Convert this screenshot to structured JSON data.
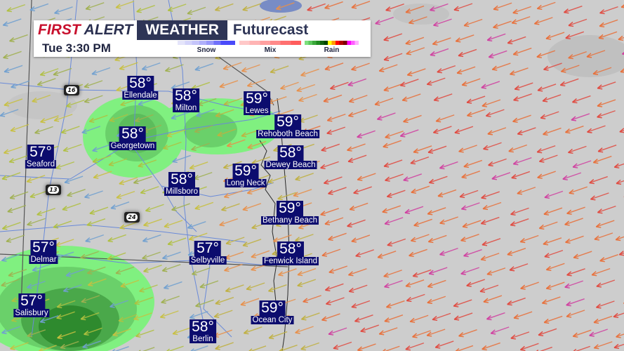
{
  "header": {
    "brand_first": "FIRST",
    "brand_alert": "ALERT",
    "brand_weather": "WEATHER",
    "product": "Futurecast",
    "time": "Tue 3:30 PM"
  },
  "legend": [
    {
      "label": "Snow",
      "colors": [
        "#e4e4fa",
        "#d4d4fa",
        "#c4c4fa",
        "#b0b0fa",
        "#9898fa",
        "#7070fa",
        "#4a4afa",
        "#4a4afa"
      ]
    },
    {
      "label": "Mix",
      "colors": [
        "#ffc8c8",
        "#ffb4b4",
        "#ffa0a0",
        "#ff8a8a",
        "#ff7070",
        "#ff5c5c"
      ]
    },
    {
      "label": "Rain",
      "colors": [
        "#7de07d",
        "#5cc85c",
        "#3aa83a",
        "#1f8a1f",
        "#106010",
        "#004400",
        "#ffff00",
        "#ff9900",
        "#ff0000",
        "#b00000",
        "#7a0000",
        "#ff00ff",
        "#ff60ff",
        "#ffb0ff"
      ]
    }
  ],
  "cities": [
    {
      "name": "Ellendale",
      "temp": "58°"
    },
    {
      "name": "Milton",
      "temp": "58°"
    },
    {
      "name": "Lewes",
      "temp": "59°"
    },
    {
      "name": "Rehoboth Beach",
      "temp": "59°"
    },
    {
      "name": "Georgetown",
      "temp": "58°"
    },
    {
      "name": "Dewey Beach",
      "temp": "58°"
    },
    {
      "name": "Seaford",
      "temp": "57°"
    },
    {
      "name": "Long Neck",
      "temp": "59°"
    },
    {
      "name": "Millsboro",
      "temp": "58°"
    },
    {
      "name": "Bethany Beach",
      "temp": "59°"
    },
    {
      "name": "Delmar",
      "temp": "57°"
    },
    {
      "name": "Selbyville",
      "temp": "57°"
    },
    {
      "name": "Fenwick Island",
      "temp": "58°"
    },
    {
      "name": "Salisbury",
      "temp": "57°"
    },
    {
      "name": "Ocean City",
      "temp": "59°"
    },
    {
      "name": "Berlin",
      "temp": "58°"
    }
  ],
  "routes": [
    "16",
    "13",
    "24"
  ]
}
